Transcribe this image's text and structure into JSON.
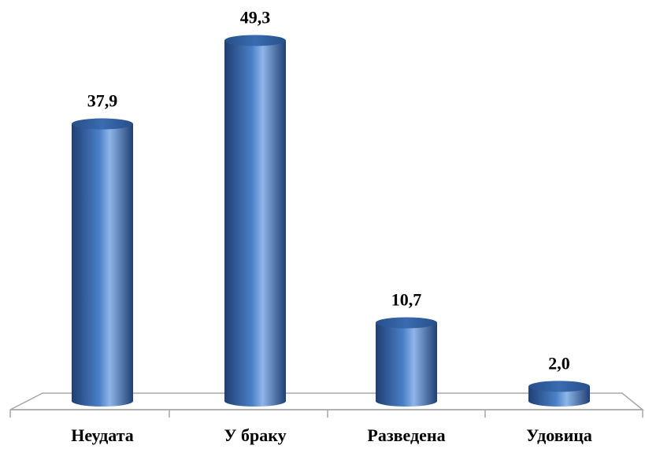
{
  "chart_data": {
    "type": "bar",
    "categories": [
      "Неудата",
      "У браку",
      "Разведена",
      "Удовица"
    ],
    "values": [
      37.9,
      49.3,
      10.7,
      2.0
    ],
    "value_labels": [
      "37,9",
      "49,3",
      "10,7",
      "2,0"
    ],
    "ylim": [
      0,
      50
    ],
    "grid": false,
    "legend": "none",
    "bar_style": "3d-cylinder",
    "colors": {
      "bar_dark": "#1f3f73",
      "bar_mid": "#4a80c8",
      "bar_light": "#8fb6e8",
      "bar_top": "#2f5c9a",
      "floor_line": "#a6a6a6"
    }
  }
}
